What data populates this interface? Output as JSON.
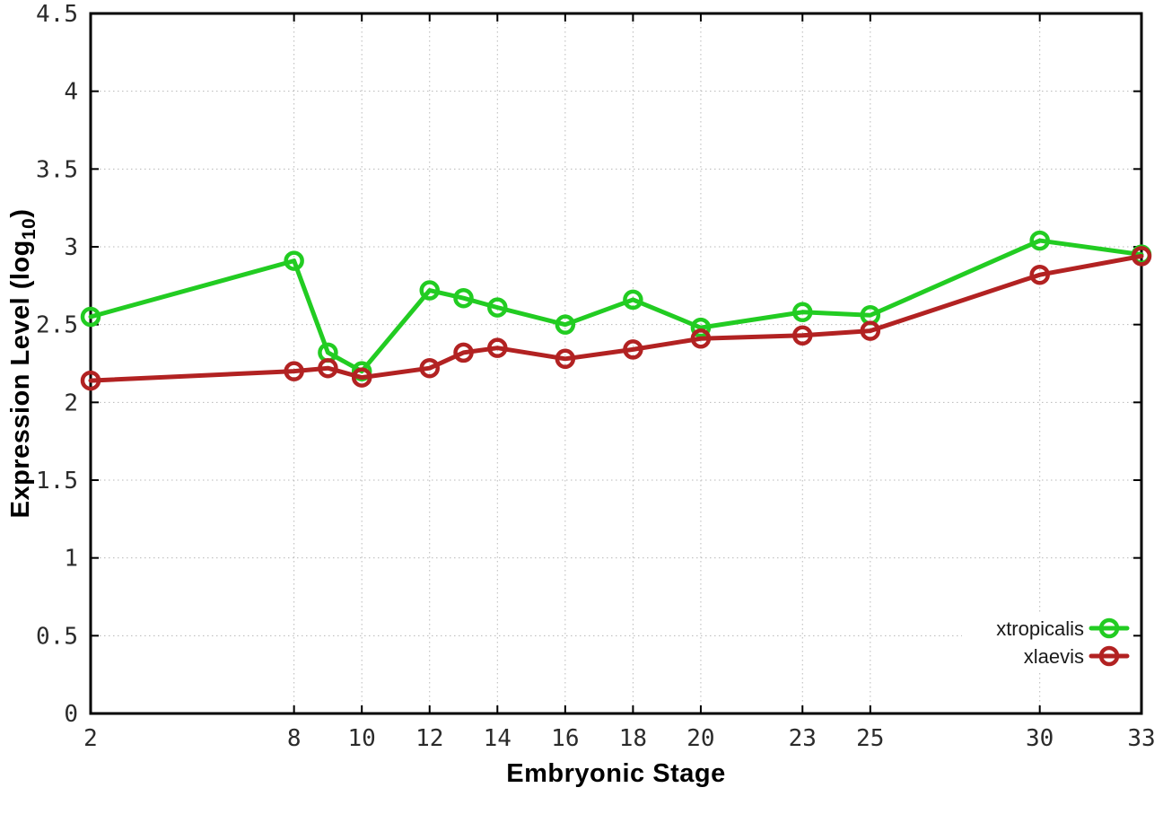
{
  "chart_data": {
    "type": "line",
    "title": "",
    "xlabel": "Embryonic Stage",
    "ylabel": "Expression Level (log10)",
    "ylabel_parts": {
      "pre": "Expression Level (log",
      "sub": "10",
      "post": ")"
    },
    "xlim": [
      2,
      33
    ],
    "ylim": [
      0,
      4.5
    ],
    "x_ticks": [
      2,
      8,
      10,
      12,
      14,
      16,
      18,
      20,
      23,
      25,
      30,
      33
    ],
    "y_ticks": [
      0,
      0.5,
      1,
      1.5,
      2,
      2.5,
      3,
      3.5,
      4,
      4.5
    ],
    "y_tick_labels": [
      "0",
      "0.5",
      "1",
      "1.5",
      "2",
      "2.5",
      "3",
      "3.5",
      "4",
      "4.5"
    ],
    "grid": true,
    "grid_style": "dotted",
    "legend_position": "bottom-right",
    "marker": "open-circle",
    "x": [
      2,
      8,
      9,
      10,
      12,
      13,
      14,
      16,
      18,
      20,
      23,
      25,
      30,
      33
    ],
    "series": [
      {
        "name": "xtropicalis",
        "color": "#22cc22",
        "values": [
          2.55,
          2.91,
          2.32,
          2.2,
          2.72,
          2.67,
          2.61,
          2.5,
          2.66,
          2.48,
          2.58,
          2.56,
          3.04,
          2.95
        ]
      },
      {
        "name": "xlaevis",
        "color": "#b22222",
        "values": [
          2.14,
          2.2,
          2.22,
          2.16,
          2.22,
          2.32,
          2.35,
          2.28,
          2.34,
          2.41,
          2.43,
          2.46,
          2.82,
          2.94
        ]
      }
    ],
    "colors": {
      "background": "#ffffff",
      "axis": "#000000",
      "grid": "#b8b8b8",
      "tick_text": "#2b2b2b",
      "legend_text": "#1a1a1a"
    }
  }
}
